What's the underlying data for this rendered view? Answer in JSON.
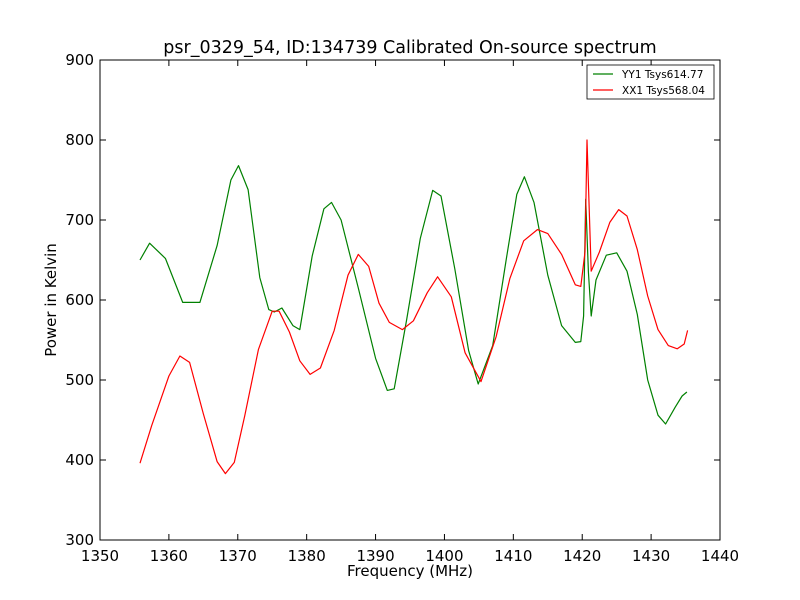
{
  "chart_data": {
    "type": "line",
    "title": "psr_0329_54, ID:134739 Calibrated On-source spectrum",
    "xlabel": "Frequency (MHz)",
    "ylabel": "Power in Kelvin",
    "xlim": [
      1350,
      1440
    ],
    "ylim": [
      300,
      900
    ],
    "xticks": [
      1350,
      1360,
      1370,
      1380,
      1390,
      1400,
      1410,
      1420,
      1430,
      1440
    ],
    "yticks": [
      300,
      400,
      500,
      600,
      700,
      800,
      900
    ],
    "grid": false,
    "legend_position": "upper right",
    "series": [
      {
        "name": "YY1 Tsys614.77",
        "color": "#008000",
        "x": [
          1355.8,
          1357.2,
          1359.5,
          1362.0,
          1364.5,
          1367.0,
          1369.0,
          1370.1,
          1371.5,
          1373.2,
          1374.5,
          1375.3,
          1376.4,
          1378.0,
          1379.0,
          1380.8,
          1382.5,
          1383.6,
          1385.0,
          1387.5,
          1390.0,
          1391.7,
          1392.7,
          1394.5,
          1396.5,
          1398.3,
          1399.5,
          1401.5,
          1403.5,
          1404.9,
          1407.0,
          1409.0,
          1410.5,
          1411.6,
          1413.0,
          1415.0,
          1417.0,
          1419.0,
          1419.8,
          1420.2,
          1420.5,
          1420.9,
          1421.3,
          1422.0,
          1423.5,
          1425.0,
          1426.5,
          1428.0,
          1429.5,
          1431.0,
          1432.1,
          1433.5,
          1434.5,
          1435.2
        ],
        "y": [
          650,
          671,
          652,
          597,
          597,
          668,
          750,
          768,
          738,
          628,
          588,
          585,
          590,
          568,
          563,
          655,
          714,
          722,
          700,
          615,
          527,
          487,
          489,
          575,
          677,
          737,
          730,
          639,
          537,
          495,
          543,
          652,
          732,
          754,
          722,
          631,
          568,
          547,
          548,
          580,
          726,
          635,
          580,
          625,
          656,
          659,
          636,
          582,
          500,
          456,
          445,
          466,
          480,
          485
        ]
      },
      {
        "name": "XX1 Tsys568.04",
        "color": "#ff0000",
        "x": [
          1355.8,
          1357.5,
          1360.0,
          1361.6,
          1363.0,
          1365.0,
          1367.0,
          1368.2,
          1369.5,
          1371.0,
          1373.0,
          1375.0,
          1376.0,
          1377.5,
          1379.0,
          1380.5,
          1382.0,
          1384.0,
          1386.0,
          1387.5,
          1389.0,
          1390.5,
          1392.0,
          1393.9,
          1395.5,
          1397.5,
          1399.0,
          1401.0,
          1403.0,
          1405.3,
          1407.5,
          1409.5,
          1411.5,
          1413.5,
          1415.0,
          1417.0,
          1419.0,
          1419.8,
          1420.4,
          1420.7,
          1421.3,
          1422.5,
          1424.0,
          1425.3,
          1426.5,
          1428.0,
          1429.5,
          1431.0,
          1432.5,
          1433.8,
          1434.8,
          1435.3
        ],
        "y": [
          396,
          443,
          505,
          530,
          522,
          458,
          398,
          383,
          397,
          455,
          538,
          586,
          586,
          560,
          524,
          507,
          515,
          562,
          631,
          657,
          642,
          596,
          572,
          563,
          574,
          609,
          629,
          604,
          534,
          498,
          554,
          627,
          674,
          688,
          683,
          657,
          619,
          617,
          660,
          800,
          636,
          660,
          697,
          713,
          705,
          663,
          605,
          563,
          543,
          539,
          545,
          562
        ]
      }
    ]
  }
}
